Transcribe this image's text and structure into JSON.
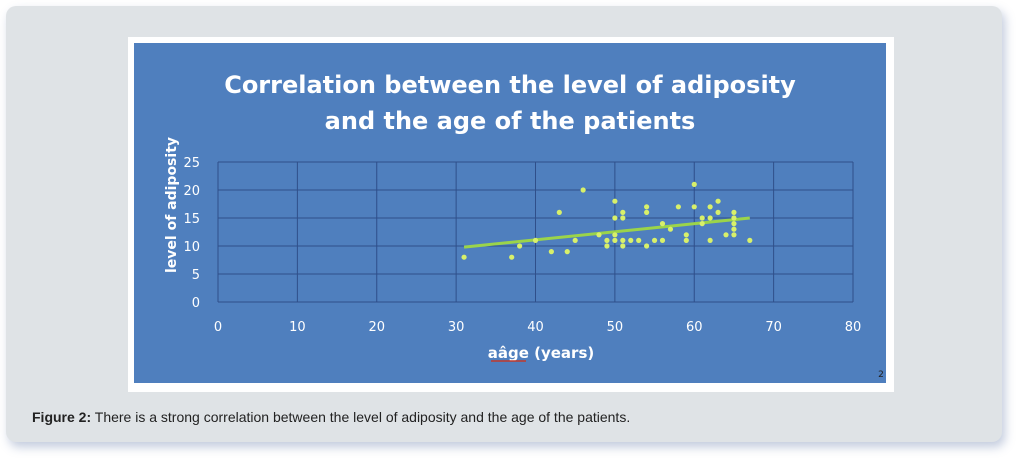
{
  "figure": {
    "label": "Figure 2:",
    "caption": "There is a strong correlation between the level of adiposity and the age of the patients.",
    "stray_mark": "2"
  },
  "colors": {
    "plot_bg": "#4f7fbe",
    "grid": "#2f4f8a",
    "points": "#d8f06a",
    "trend": "#9bd44a",
    "text": "#ffffff"
  },
  "chart_data": {
    "type": "scatter",
    "title_line1": "Correlation between the level of adiposity",
    "title_line2": "and the age of the patients",
    "xlabel": "aâge (years)",
    "ylabel": "level of adiposity",
    "xlim": [
      0,
      80
    ],
    "ylim": [
      0,
      25
    ],
    "xticks": [
      0,
      10,
      20,
      30,
      40,
      50,
      60,
      70,
      80
    ],
    "yticks": [
      0,
      5,
      10,
      15,
      20,
      25
    ],
    "grid": true,
    "legend": "none",
    "points": [
      [
        31,
        8
      ],
      [
        37,
        8
      ],
      [
        38,
        10
      ],
      [
        40,
        11
      ],
      [
        42,
        9
      ],
      [
        43,
        16
      ],
      [
        44,
        9
      ],
      [
        45,
        11
      ],
      [
        46,
        20
      ],
      [
        48,
        12
      ],
      [
        49,
        11
      ],
      [
        49,
        10
      ],
      [
        50,
        18
      ],
      [
        50,
        15
      ],
      [
        50,
        12
      ],
      [
        50,
        11
      ],
      [
        51,
        16
      ],
      [
        51,
        15
      ],
      [
        51,
        11
      ],
      [
        51,
        10
      ],
      [
        52,
        11
      ],
      [
        53,
        11
      ],
      [
        54,
        17
      ],
      [
        54,
        16
      ],
      [
        54,
        10
      ],
      [
        55,
        11
      ],
      [
        56,
        14
      ],
      [
        56,
        11
      ],
      [
        57,
        13
      ],
      [
        58,
        17
      ],
      [
        59,
        12
      ],
      [
        59,
        11
      ],
      [
        60,
        21
      ],
      [
        60,
        17
      ],
      [
        61,
        15
      ],
      [
        61,
        14
      ],
      [
        62,
        17
      ],
      [
        62,
        15
      ],
      [
        62,
        11
      ],
      [
        63,
        18
      ],
      [
        63,
        16
      ],
      [
        64,
        12
      ],
      [
        65,
        16
      ],
      [
        65,
        15
      ],
      [
        65,
        14
      ],
      [
        65,
        13
      ],
      [
        65,
        12
      ],
      [
        67,
        11
      ]
    ],
    "trendline": {
      "x": [
        31,
        67
      ],
      "y": [
        9.8,
        15
      ]
    }
  }
}
